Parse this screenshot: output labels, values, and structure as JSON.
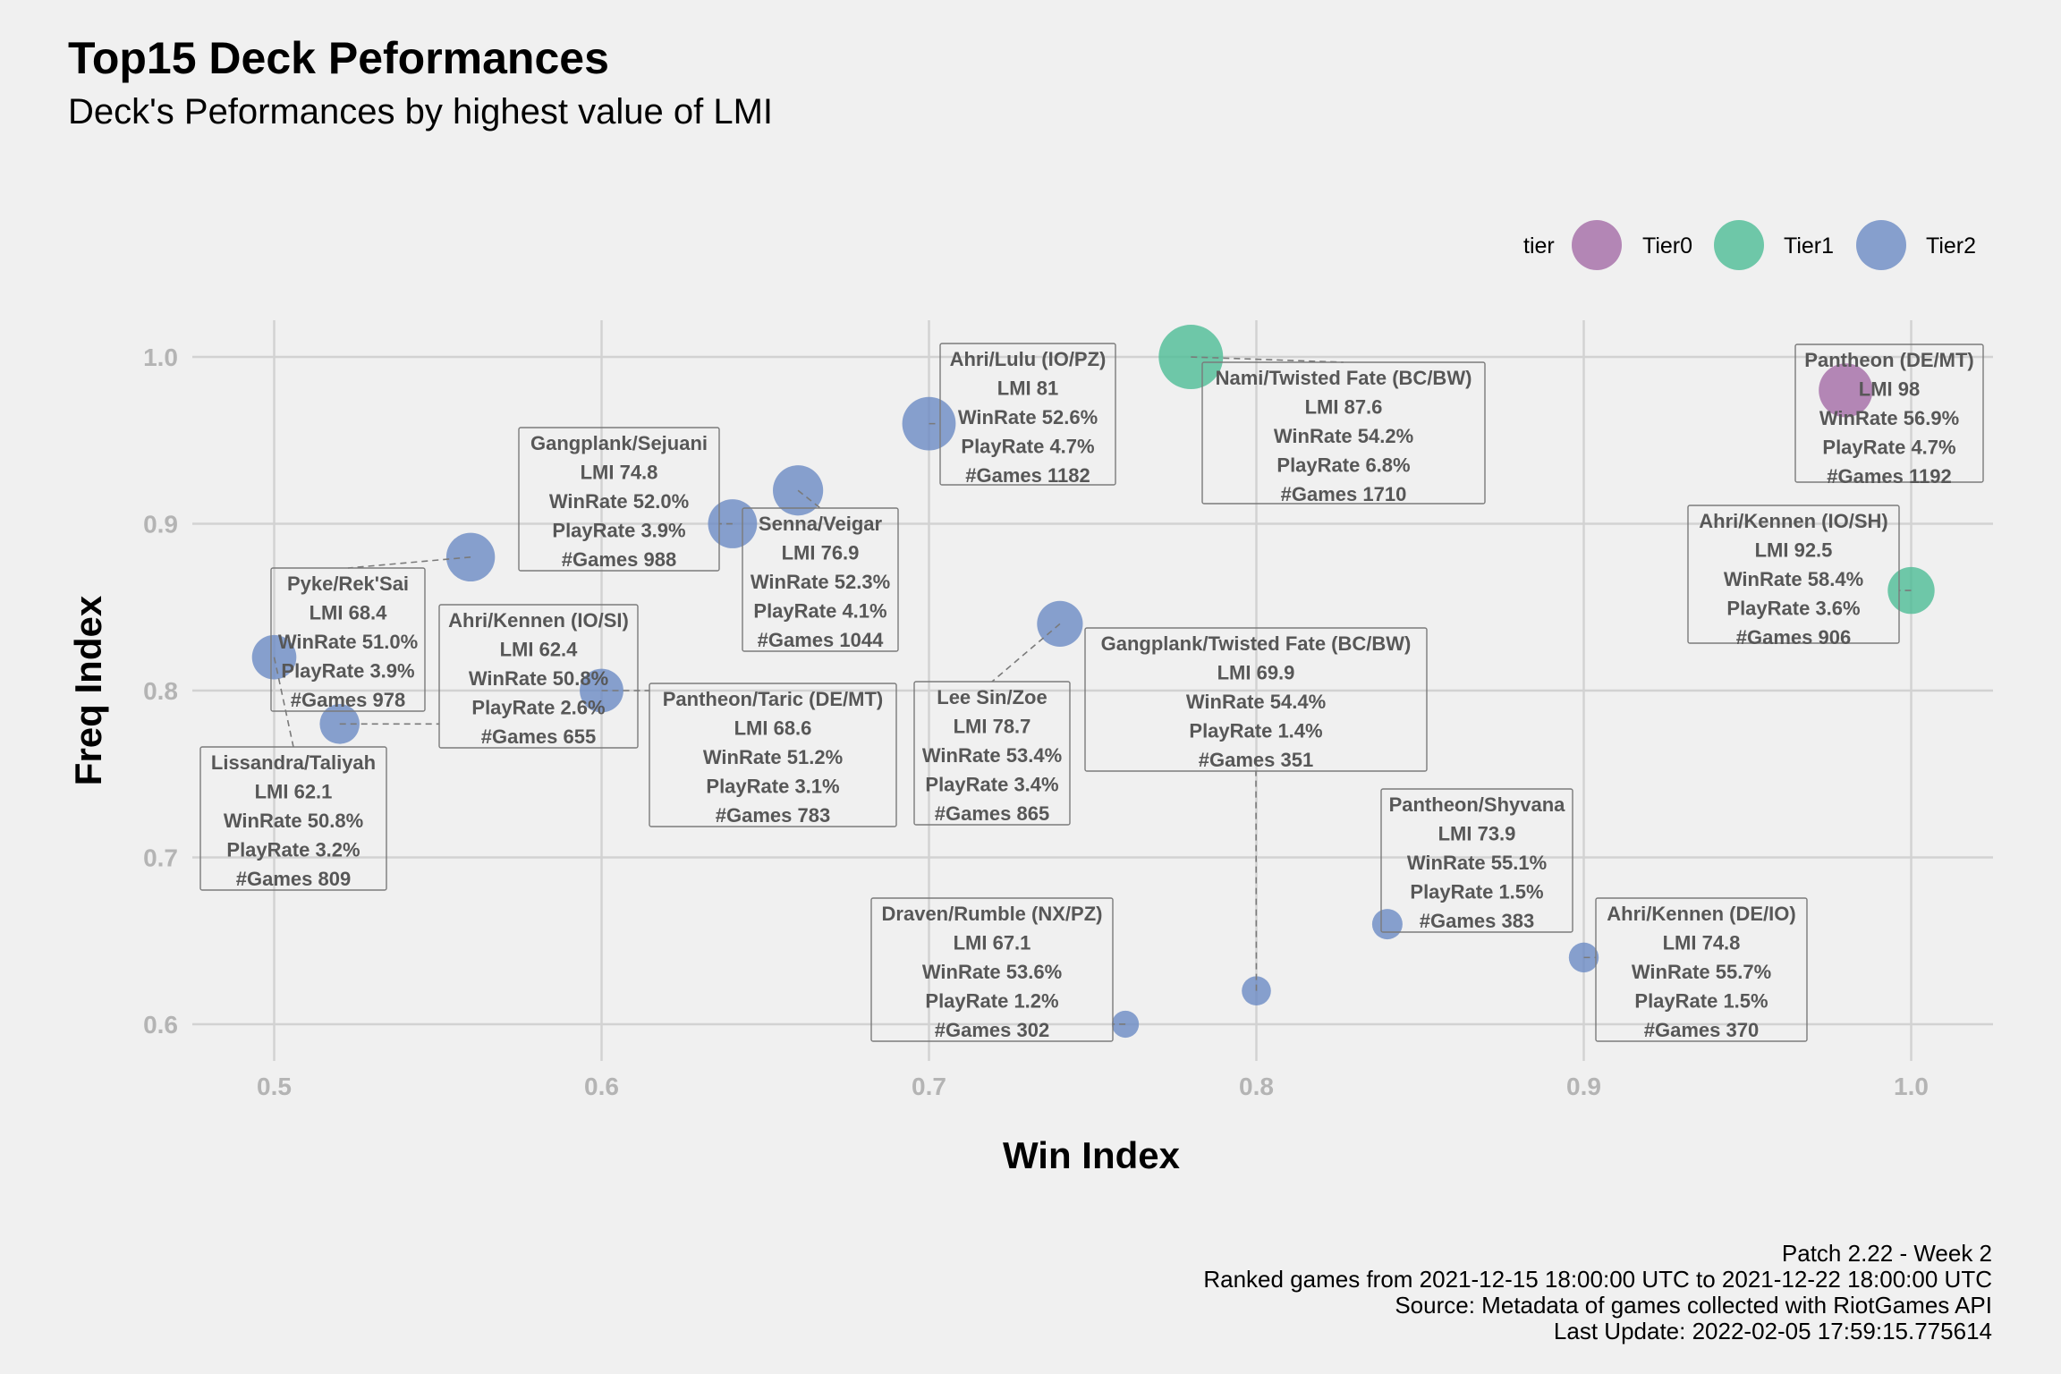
{
  "title": "Top15 Deck Peformances",
  "subtitle": "Deck's Peformances by highest value of LMI",
  "caption": [
    "Patch 2.22 - Week 2",
    "Ranked games from 2021-12-15 18:00:00 UTC to 2021-12-22 18:00:00 UTC",
    "Source: Metadata of games collected with RiotGames API",
    "Last Update: 2022-02-05 17:59:15.775614"
  ],
  "legend": {
    "title": "tier",
    "items": [
      {
        "label": "Tier0",
        "color": "#A46BA6"
      },
      {
        "label": "Tier1",
        "color": "#4DBD96"
      },
      {
        "label": "Tier2",
        "color": "#6B8BC4"
      }
    ]
  },
  "chart_data": {
    "type": "scatter",
    "xlabel": "Win Index",
    "ylabel": "Freq Index",
    "xlim": [
      0.475,
      1.025
    ],
    "ylim": [
      0.578,
      1.022
    ],
    "xticks": [
      "0.5",
      "0.6",
      "0.7",
      "0.8",
      "0.9",
      "1.0"
    ],
    "yticks": [
      "0.6",
      "0.7",
      "0.8",
      "0.9",
      "1.0"
    ],
    "grid": true,
    "legend_position": "top-right",
    "size_variable": "games",
    "points": [
      {
        "deck": "Pantheon (DE/MT)",
        "tier": "Tier0",
        "x": 0.98,
        "y": 0.98,
        "games": 1192,
        "lines": [
          "Pantheon (DE/MT)",
          "LMI 98",
          "WinRate 56.9%",
          "PlayRate 4.7%",
          "#Games 1192"
        ]
      },
      {
        "deck": "Ahri/Kennen (IO/SH)",
        "tier": "Tier1",
        "x": 1.0,
        "y": 0.86,
        "games": 906,
        "lines": [
          "Ahri/Kennen (IO/SH)",
          "LMI 92.5",
          "WinRate 58.4%",
          "PlayRate 3.6%",
          "#Games 906"
        ]
      },
      {
        "deck": "Nami/Twisted Fate (BC/BW)",
        "tier": "Tier1",
        "x": 0.78,
        "y": 1.0,
        "games": 1710,
        "lines": [
          "Nami/Twisted Fate (BC/BW)",
          "LMI 87.6",
          "WinRate 54.2%",
          "PlayRate 6.8%",
          "#Games 1710"
        ]
      },
      {
        "deck": "Ahri/Lulu (IO/PZ)",
        "tier": "Tier2",
        "x": 0.7,
        "y": 0.96,
        "games": 1182,
        "lines": [
          "Ahri/Lulu (IO/PZ)",
          "LMI 81",
          "WinRate 52.6%",
          "PlayRate 4.7%",
          "#Games 1182"
        ]
      },
      {
        "deck": "Lee Sin/Zoe",
        "tier": "Tier2",
        "x": 0.74,
        "y": 0.84,
        "games": 865,
        "lines": [
          "Lee Sin/Zoe",
          "LMI 78.7",
          "WinRate 53.4%",
          "PlayRate 3.4%",
          "#Games 865"
        ]
      },
      {
        "deck": "Senna/Veigar",
        "tier": "Tier2",
        "x": 0.66,
        "y": 0.92,
        "games": 1044,
        "lines": [
          "Senna/Veigar",
          "LMI 76.9",
          "WinRate 52.3%",
          "PlayRate 4.1%",
          "#Games 1044"
        ]
      },
      {
        "deck": "Gangplank/Sejuani",
        "tier": "Tier2",
        "x": 0.64,
        "y": 0.9,
        "games": 988,
        "lines": [
          "Gangplank/Sejuani",
          "LMI 74.8",
          "WinRate 52.0%",
          "PlayRate 3.9%",
          "#Games 988"
        ]
      },
      {
        "deck": "Ahri/Kennen (DE/IO)",
        "tier": "Tier2",
        "x": 0.9,
        "y": 0.64,
        "games": 370,
        "lines": [
          "Ahri/Kennen (DE/IO)",
          "LMI 74.8",
          "WinRate 55.7%",
          "PlayRate 1.5%",
          "#Games 370"
        ]
      },
      {
        "deck": "Pantheon/Shyvana",
        "tier": "Tier2",
        "x": 0.84,
        "y": 0.66,
        "games": 383,
        "lines": [
          "Pantheon/Shyvana",
          "LMI 73.9",
          "WinRate 55.1%",
          "PlayRate 1.5%",
          "#Games 383"
        ]
      },
      {
        "deck": "Gangplank/Twisted Fate (BC/BW)",
        "tier": "Tier2",
        "x": 0.8,
        "y": 0.62,
        "games": 351,
        "lines": [
          "Gangplank/Twisted Fate (BC/BW)",
          "LMI 69.9",
          "WinRate 54.4%",
          "PlayRate 1.4%",
          "#Games 351"
        ]
      },
      {
        "deck": "Pantheon/Taric (DE/MT)",
        "tier": "Tier2",
        "x": 0.6,
        "y": 0.8,
        "games": 783,
        "lines": [
          "Pantheon/Taric (DE/MT)",
          "LMI 68.6",
          "WinRate 51.2%",
          "PlayRate 3.1%",
          "#Games 783"
        ]
      },
      {
        "deck": "Pyke/Rek'Sai",
        "tier": "Tier2",
        "x": 0.56,
        "y": 0.88,
        "games": 978,
        "lines": [
          "Pyke/Rek'Sai",
          "LMI 68.4",
          "WinRate 51.0%",
          "PlayRate 3.9%",
          "#Games 978"
        ]
      },
      {
        "deck": "Draven/Rumble (NX/PZ)",
        "tier": "Tier2",
        "x": 0.76,
        "y": 0.6,
        "games": 302,
        "lines": [
          "Draven/Rumble (NX/PZ)",
          "LMI 67.1",
          "WinRate 53.6%",
          "PlayRate 1.2%",
          "#Games 302"
        ]
      },
      {
        "deck": "Ahri/Kennen (IO/SI)",
        "tier": "Tier2",
        "x": 0.52,
        "y": 0.78,
        "games": 655,
        "lines": [
          "Ahri/Kennen (IO/SI)",
          "LMI 62.4",
          "WinRate 50.8%",
          "PlayRate 2.6%",
          "#Games 655"
        ]
      },
      {
        "deck": "Lissandra/Taliyah",
        "tier": "Tier2",
        "x": 0.5,
        "y": 0.82,
        "games": 809,
        "lines": [
          "Lissandra/Taliyah",
          "LMI 62.1",
          "WinRate 50.8%",
          "PlayRate 3.2%",
          "#Games 809"
        ]
      }
    ]
  }
}
